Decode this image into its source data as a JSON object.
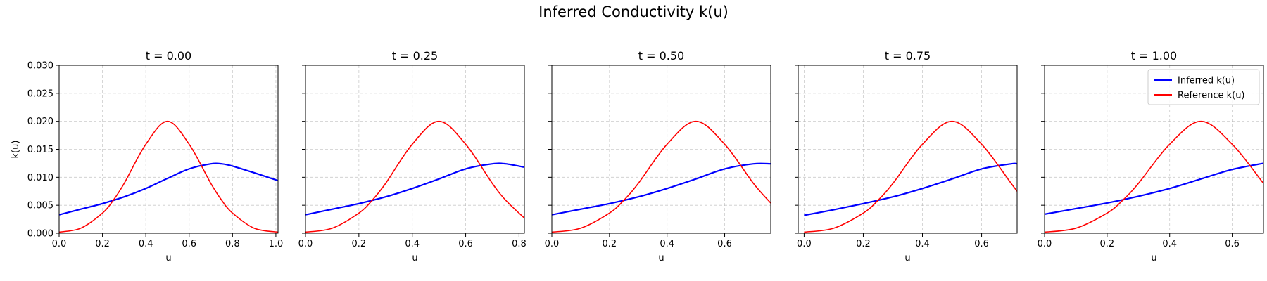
{
  "figure": {
    "title": "Inferred Conductivity k(u)"
  },
  "colors": {
    "inferred": "#0000ff",
    "reference": "#ff0000"
  },
  "chart_data": [
    {
      "type": "line",
      "title": "t = 0.00",
      "xlabel": "u",
      "ylabel": "k(u)",
      "xlim": [
        0.0,
        1.01
      ],
      "ylim": [
        0.0,
        0.03
      ],
      "xticks": [
        0.0,
        0.2,
        0.4,
        0.6,
        0.8,
        1.0
      ],
      "yticks": [
        0.0,
        0.005,
        0.01,
        0.015,
        0.02,
        0.025,
        0.03
      ],
      "grid": true,
      "series": [
        {
          "name": "Inferred k(u)",
          "x": [
            0.0,
            0.1,
            0.2,
            0.3,
            0.4,
            0.5,
            0.6,
            0.7,
            0.75,
            0.8,
            0.9,
            1.01
          ],
          "y": [
            0.0033,
            0.0043,
            0.0053,
            0.0065,
            0.008,
            0.0098,
            0.0115,
            0.0124,
            0.0124,
            0.012,
            0.0108,
            0.0094
          ]
        },
        {
          "name": "Reference k(u)",
          "x": [
            0.0,
            0.1,
            0.2,
            0.25,
            0.3,
            0.4,
            0.5,
            0.6,
            0.7,
            0.75,
            0.8,
            0.9,
            1.01
          ],
          "y": [
            0.0002,
            0.0009,
            0.0036,
            0.0059,
            0.0089,
            0.0159,
            0.02,
            0.0159,
            0.0089,
            0.0059,
            0.0036,
            0.0009,
            0.0002
          ]
        }
      ]
    },
    {
      "type": "line",
      "title": "t = 0.25",
      "xlabel": "u",
      "ylabel": "",
      "xlim": [
        0.0,
        0.82
      ],
      "ylim": [
        0.0,
        0.03
      ],
      "xticks": [
        0.0,
        0.2,
        0.4,
        0.6,
        0.8
      ],
      "yticks": [
        0.0,
        0.005,
        0.01,
        0.015,
        0.02,
        0.025,
        0.03
      ],
      "grid": true,
      "series": [
        {
          "name": "Inferred k(u)",
          "x": [
            0.0,
            0.1,
            0.2,
            0.3,
            0.4,
            0.5,
            0.6,
            0.7,
            0.75,
            0.82
          ],
          "y": [
            0.0033,
            0.0043,
            0.0053,
            0.0065,
            0.008,
            0.0097,
            0.0115,
            0.0124,
            0.0124,
            0.0118
          ]
        },
        {
          "name": "Reference k(u)",
          "x": [
            0.0,
            0.1,
            0.2,
            0.25,
            0.3,
            0.4,
            0.5,
            0.6,
            0.7,
            0.75,
            0.82
          ],
          "y": [
            0.0002,
            0.0009,
            0.0036,
            0.0059,
            0.0089,
            0.0159,
            0.02,
            0.0159,
            0.0089,
            0.0059,
            0.0027
          ]
        }
      ]
    },
    {
      "type": "line",
      "title": "t = 0.50",
      "xlabel": "u",
      "ylabel": "",
      "xlim": [
        0.0,
        0.76
      ],
      "ylim": [
        0.0,
        0.03
      ],
      "xticks": [
        0.0,
        0.2,
        0.4,
        0.6
      ],
      "yticks": [
        0.0,
        0.005,
        0.01,
        0.015,
        0.02,
        0.025,
        0.03
      ],
      "grid": true,
      "series": [
        {
          "name": "Inferred k(u)",
          "x": [
            0.0,
            0.1,
            0.2,
            0.3,
            0.4,
            0.5,
            0.6,
            0.7,
            0.76
          ],
          "y": [
            0.0033,
            0.0043,
            0.0053,
            0.0065,
            0.008,
            0.0097,
            0.0115,
            0.0124,
            0.0124
          ]
        },
        {
          "name": "Reference k(u)",
          "x": [
            0.0,
            0.1,
            0.2,
            0.25,
            0.3,
            0.4,
            0.5,
            0.6,
            0.7,
            0.76
          ],
          "y": [
            0.0002,
            0.0009,
            0.0036,
            0.0059,
            0.0089,
            0.0159,
            0.02,
            0.0159,
            0.0089,
            0.0054
          ]
        }
      ]
    },
    {
      "type": "line",
      "title": "t = 0.75",
      "xlabel": "u",
      "ylabel": "",
      "xlim": [
        -0.02,
        0.72
      ],
      "ylim": [
        0.0,
        0.03
      ],
      "xticks": [
        0.0,
        0.2,
        0.4,
        0.6
      ],
      "yticks": [
        0.0,
        0.005,
        0.01,
        0.015,
        0.02,
        0.025,
        0.03
      ],
      "grid": true,
      "series": [
        {
          "name": "Inferred k(u)",
          "x": [
            0.0,
            0.1,
            0.2,
            0.3,
            0.4,
            0.5,
            0.6,
            0.7,
            0.72
          ],
          "y": [
            0.0032,
            0.0042,
            0.0053,
            0.0065,
            0.008,
            0.0097,
            0.0115,
            0.0124,
            0.0124
          ]
        },
        {
          "name": "Reference k(u)",
          "x": [
            0.0,
            0.1,
            0.2,
            0.25,
            0.3,
            0.4,
            0.5,
            0.6,
            0.7,
            0.72
          ],
          "y": [
            0.0002,
            0.0009,
            0.0036,
            0.0059,
            0.0089,
            0.0159,
            0.02,
            0.0159,
            0.0089,
            0.0075
          ]
        }
      ]
    },
    {
      "type": "line",
      "title": "t = 1.00",
      "xlabel": "u",
      "ylabel": "",
      "xlim": [
        0.0,
        0.7
      ],
      "ylim": [
        0.0,
        0.03
      ],
      "xticks": [
        0.0,
        0.2,
        0.4,
        0.6
      ],
      "yticks": [
        0.0,
        0.005,
        0.01,
        0.015,
        0.02,
        0.025,
        0.03
      ],
      "grid": true,
      "legend": "top-right",
      "series": [
        {
          "name": "Inferred k(u)",
          "x": [
            0.0,
            0.1,
            0.2,
            0.3,
            0.4,
            0.5,
            0.6,
            0.7
          ],
          "y": [
            0.0034,
            0.0044,
            0.0054,
            0.0066,
            0.008,
            0.0097,
            0.0114,
            0.0125
          ]
        },
        {
          "name": "Reference k(u)",
          "x": [
            0.0,
            0.1,
            0.2,
            0.25,
            0.3,
            0.4,
            0.5,
            0.6,
            0.7
          ],
          "y": [
            0.0002,
            0.0009,
            0.0036,
            0.0059,
            0.0089,
            0.0159,
            0.02,
            0.0159,
            0.0089
          ]
        }
      ]
    }
  ]
}
